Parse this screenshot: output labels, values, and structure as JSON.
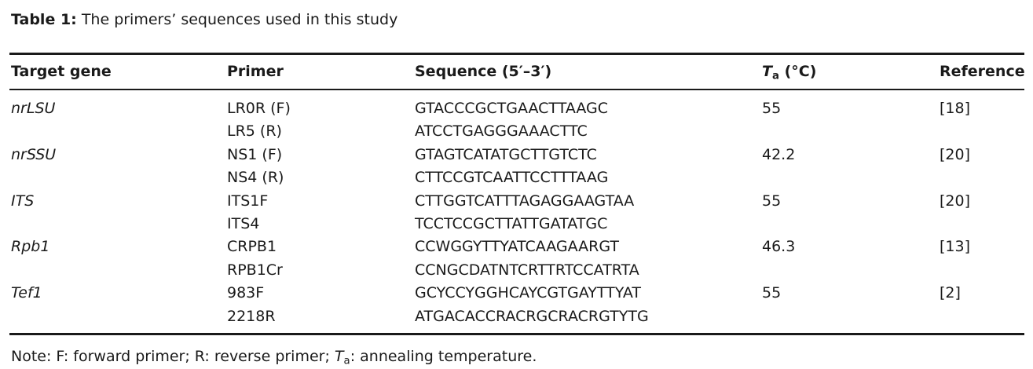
{
  "caption": {
    "label": "Table 1:",
    "text": "The primers’ sequences used in this study"
  },
  "headers": {
    "target_gene": "Target gene",
    "primer": "Primer",
    "sequence": "Sequence (5′–3′)",
    "ta_symbol": "T",
    "ta_sub": "a",
    "ta_unit": "(°C)",
    "reference": "Reference"
  },
  "rows": [
    {
      "gene": "nrLSU",
      "primer": "LR0R (F)",
      "sequence": "GTACCCGCTGAACTTAAGC",
      "ta": "55",
      "reference": "[18]"
    },
    {
      "gene": "",
      "primer": "LR5 (R)",
      "sequence": "ATCCTGAGGGAAACTTC",
      "ta": "",
      "reference": ""
    },
    {
      "gene": "nrSSU",
      "primer": "NS1 (F)",
      "sequence": "GTAGTCATATGCTTGTCTC",
      "ta": "42.2",
      "reference": "[20]"
    },
    {
      "gene": "",
      "primer": "NS4 (R)",
      "sequence": "CTTCCGTCAATTCCTTTAAG",
      "ta": "",
      "reference": ""
    },
    {
      "gene": "ITS",
      "primer": "ITS1F",
      "sequence": "CTTGGTCATTTAGAGGAAGTAA",
      "ta": "55",
      "reference": "[20]"
    },
    {
      "gene": "",
      "primer": "ITS4",
      "sequence": "TCCTCCGCTTATTGATATGC",
      "ta": "",
      "reference": ""
    },
    {
      "gene": "Rpb1",
      "primer": "CRPB1",
      "sequence": "CCWGGYTTYATCAAGAARGT",
      "ta": "46.3",
      "reference": "[13]"
    },
    {
      "gene": "",
      "primer": "RPB1Cr",
      "sequence": "CCNGCDATNTCRTTRTCCATRTA",
      "ta": "",
      "reference": ""
    },
    {
      "gene": "Tef1",
      "primer": "983F",
      "sequence": "GCYCCYGGHCAYCGTGAYTTYAT",
      "ta": "55",
      "reference": "[2]"
    },
    {
      "gene": "",
      "primer": "2218R",
      "sequence": "ATGACACCRACRGCRACRGTYTG",
      "ta": "",
      "reference": ""
    }
  ],
  "note": {
    "prefix": "Note: F: forward primer; R: reverse primer; ",
    "ta_symbol": "T",
    "ta_sub": "a",
    "suffix": ": annealing temperature."
  }
}
